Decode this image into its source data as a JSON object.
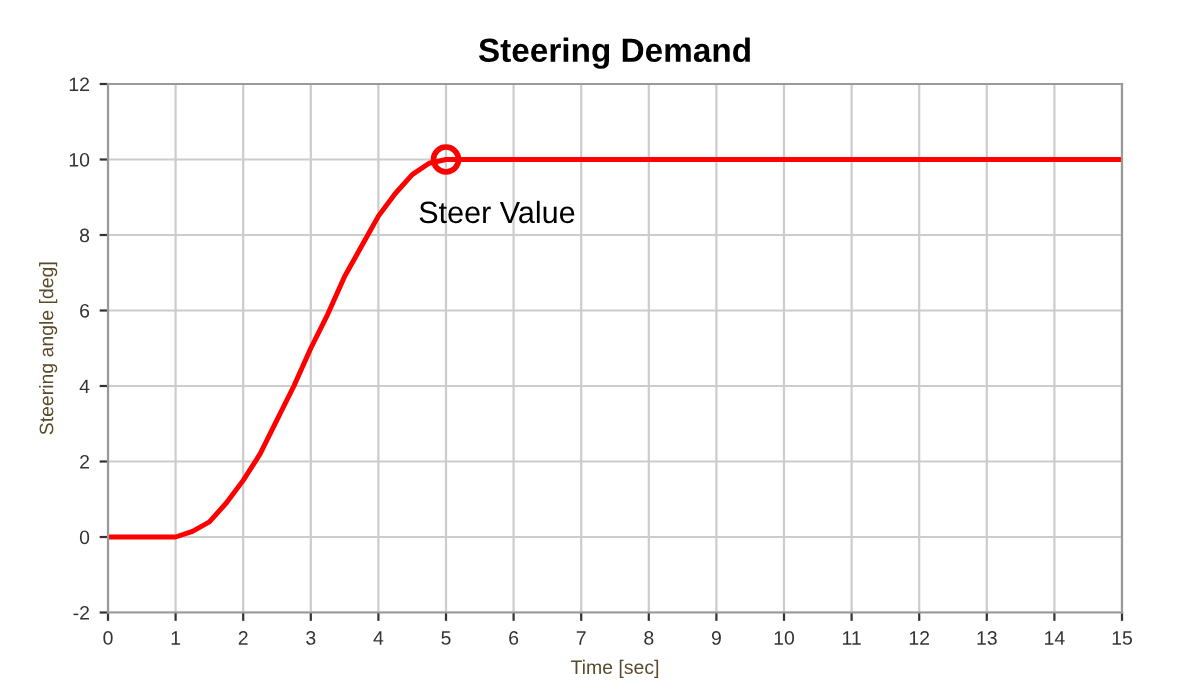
{
  "chart_data": {
    "type": "line",
    "title": "Steering Demand",
    "xlabel": "Time [sec]",
    "ylabel": "Steering angle [deg]",
    "x": [
      0,
      0.5,
      1,
      1.25,
      1.5,
      1.75,
      2,
      2.25,
      2.5,
      2.75,
      3,
      3.25,
      3.5,
      3.75,
      4,
      4.25,
      4.5,
      4.75,
      5,
      6,
      8,
      10,
      12,
      15
    ],
    "series": [
      {
        "color": "#ff0000",
        "values": [
          0,
          0,
          0,
          0.15,
          0.4,
          0.9,
          1.5,
          2.2,
          3.1,
          4.0,
          5.0,
          5.9,
          6.9,
          7.7,
          8.5,
          9.1,
          9.6,
          9.9,
          10,
          10,
          10,
          10,
          10,
          10
        ]
      }
    ],
    "annotations": [
      {
        "text": "Steer Value",
        "x": 5,
        "y": 10
      }
    ],
    "xlim": [
      0,
      15
    ],
    "xticks": [
      0,
      1,
      2,
      3,
      4,
      5,
      6,
      7,
      8,
      9,
      10,
      11,
      12,
      13,
      14,
      15
    ],
    "ylim": [
      -2,
      12
    ],
    "yticks": [
      -2,
      0,
      2,
      4,
      6,
      8,
      10,
      12
    ],
    "grid": true,
    "legend": false,
    "marker": "none",
    "line_style": "solid"
  }
}
